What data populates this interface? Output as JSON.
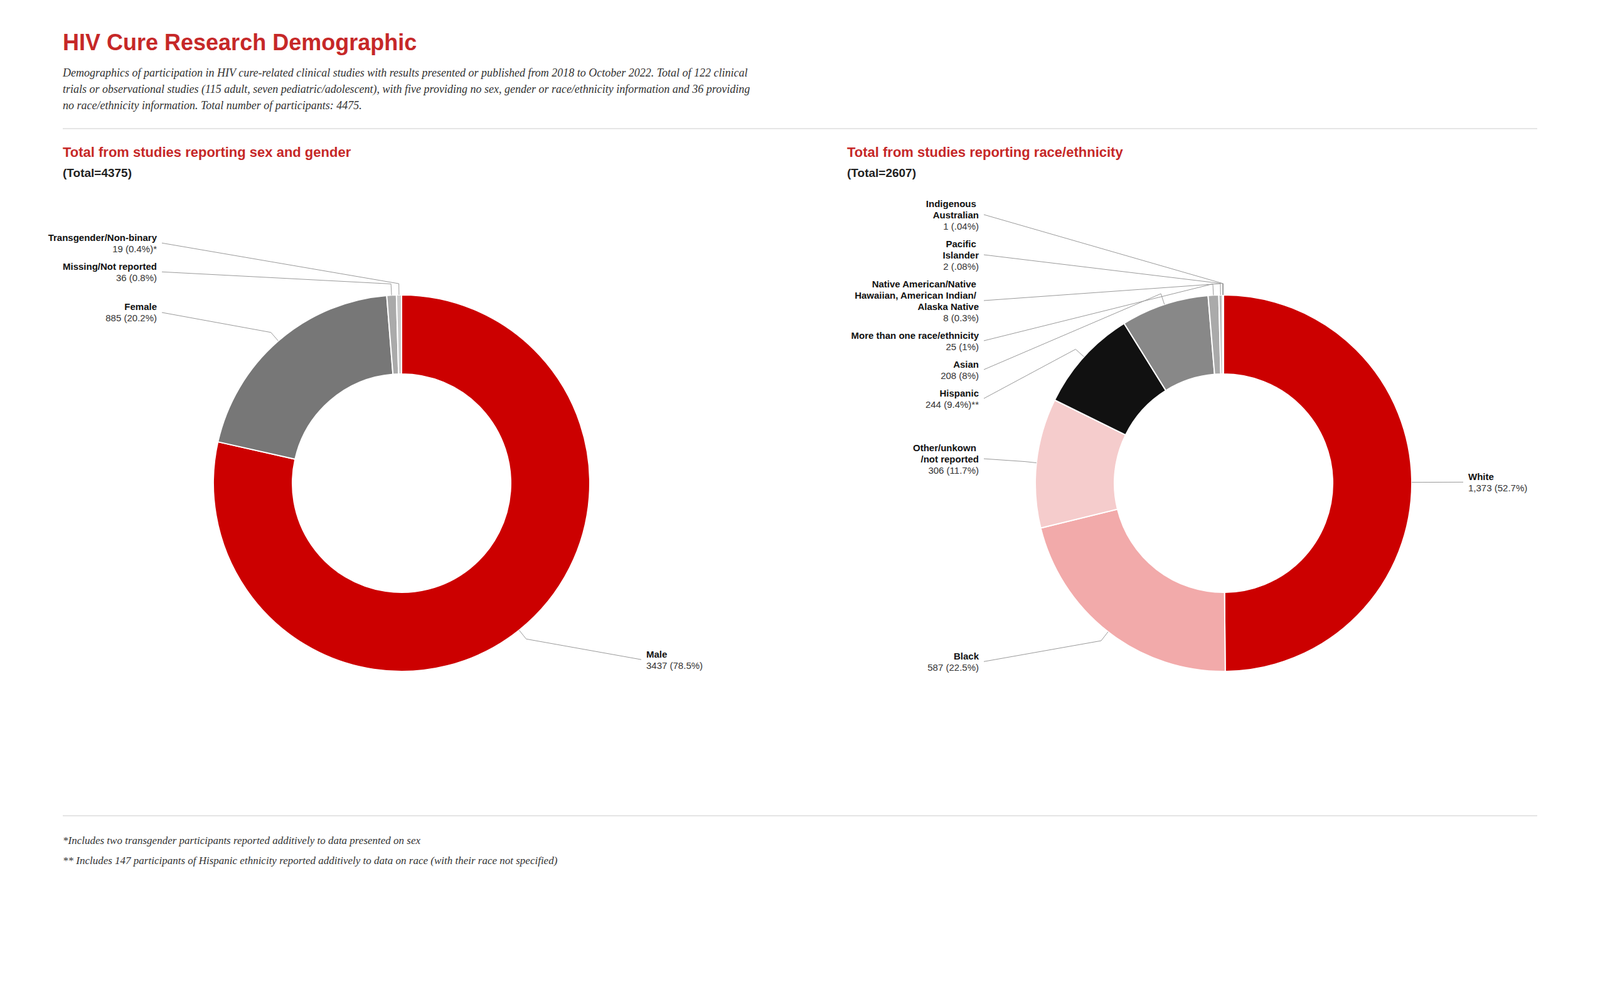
{
  "title": "HIV Cure Research Demographic",
  "subtitle": [
    "Demographics of participation in HIV cure-related clinical studies with results presented or published from 2018 to October 2022. Total of 122 clinical",
    "trials or observational studies (115 adult, seven pediatric/adolescent), with five providing no sex, gender or race/ethnicity information and 36 providing",
    "no race/ethnicity information. Total number of participants: 4475."
  ],
  "annotations": [
    "*Includes two transgender participants reported additively to data presented on sex",
    "** Includes 147 participants of Hispanic ethnicity reported additively to data on race (with their race not specified)"
  ],
  "chart_data": [
    {
      "type": "donut",
      "title": "Total from studies reporting sex and gender",
      "subtitle": "(Total=4375)",
      "categories": [
        "Male",
        "Female",
        "Missing/Not reported",
        "Transgender/Non-binary"
      ],
      "values": [
        3437,
        885,
        36,
        19
      ],
      "value_labels": [
        "3437 (78.5%)",
        "885 (20.2%)",
        "36 (0.8%)",
        "19 (0.4%)*"
      ],
      "colors": [
        "#cc0000",
        "#777777",
        "#aaaaaa",
        "#cccccc"
      ]
    },
    {
      "type": "donut",
      "title": "Total from studies reporting race/ethnicity",
      "subtitle": "(Total=2607)",
      "categories": [
        "White",
        "Black",
        "Other/unkown\n/not reported",
        "Hispanic",
        "Asian",
        "More than one race/ethnicity",
        "Native American/Native\nHawaiian, American Indian/\nAlaska Native",
        "Pacific\nIslander",
        "Indigenous\nAustralian"
      ],
      "values": [
        1373,
        587,
        306,
        244,
        208,
        25,
        8,
        2,
        1
      ],
      "value_labels": [
        "1,373 (52.7%)",
        "587 (22.5%)",
        "306 (11.7%)",
        "244 (9.4%)**",
        "208 (8%)",
        "25 (1%)",
        "8 (0.3%)",
        "2 (.08%)",
        "1 (.04%)"
      ],
      "colors": [
        "#cc0000",
        "#f2aaaa",
        "#f5cccc",
        "#111111",
        "#888888",
        "#aaaaaa",
        "#bbbbbb",
        "#e89999",
        "#ddbbbb"
      ]
    }
  ]
}
